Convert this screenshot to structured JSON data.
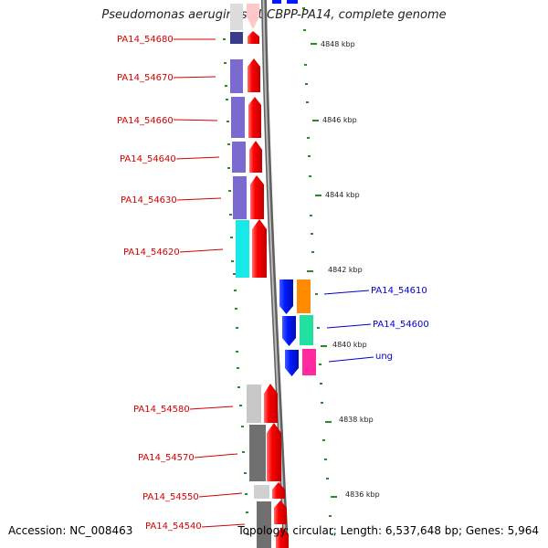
{
  "title": "Pseudomonas aeruginosa UCBPP-PA14, complete genome",
  "footer": {
    "accession": "Accession: NC_008463",
    "summary": "Topology: circular; Length: 6,537,648 bp; Genes: 5,964"
  },
  "colors": {
    "backbone": "#808080",
    "left_label": "#d40000",
    "right_label": "#0000cc",
    "tick": "#2a8a2a"
  },
  "scale_labels": [
    "4848 kbp",
    "4846 kbp",
    "4844 kbp",
    "4842 kbp",
    "4840 kbp",
    "4838 kbp",
    "4836 kbp"
  ],
  "genes_left": [
    {
      "label": "PA14_54680",
      "color": "#3b3b8c"
    },
    {
      "label": "PA14_54670",
      "color": "#7b6ad0"
    },
    {
      "label": "PA14_54660",
      "color": "#7b6ad0"
    },
    {
      "label": "PA14_54640",
      "color": "#7b6ad0"
    },
    {
      "label": "PA14_54630",
      "color": "#7b6ad0"
    },
    {
      "label": "PA14_54620",
      "color": "#19e8e8"
    },
    {
      "label": "PA14_54580",
      "color": "#c8c8c8"
    },
    {
      "label": "PA14_54570",
      "color": "#707070"
    },
    {
      "label": "PA14_54550",
      "color": "#d0d0d0"
    },
    {
      "label": "PA14_54540",
      "color": "#707070"
    }
  ],
  "genes_right": [
    {
      "label": "PA14_54610",
      "color": "#ff8c00"
    },
    {
      "label": "PA14_54600",
      "color": "#22e0a0"
    },
    {
      "label": "ung",
      "color": "#ff2aa0"
    }
  ]
}
